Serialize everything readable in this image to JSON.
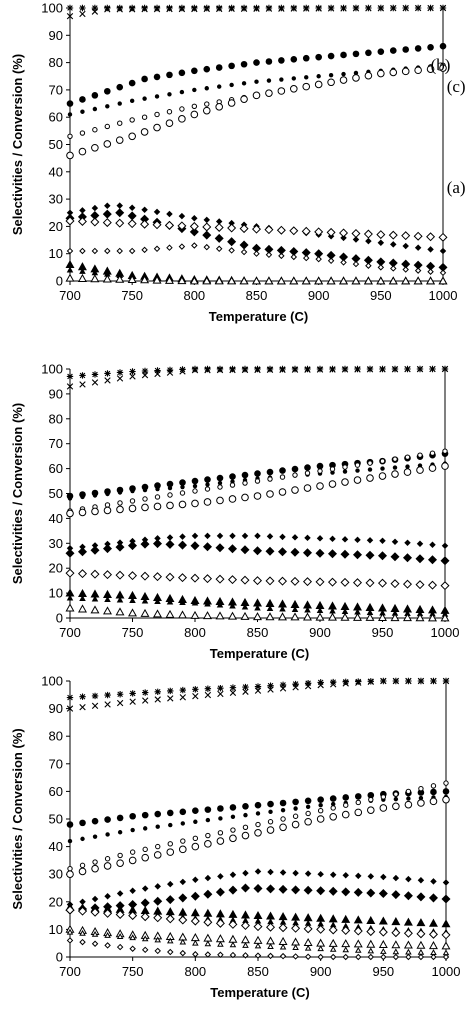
{
  "chart_data": [
    {
      "type": "scatter",
      "xlabel": "Temperature (C)",
      "ylabel": "Selectivities / Conversion (%)",
      "xlim": [
        700,
        1000
      ],
      "ylim": [
        0,
        100
      ],
      "xticks": [
        700,
        750,
        800,
        850,
        900,
        950,
        1000
      ],
      "yticks": [
        0,
        10,
        20,
        30,
        40,
        50,
        60,
        70,
        80,
        90,
        100
      ],
      "grid": false,
      "annotations": [
        {
          "text": "(b)",
          "x": 990,
          "y": 79
        },
        {
          "text": "(c)",
          "x": 1003,
          "y": 71
        },
        {
          "text": "(a)",
          "x": 1003,
          "y": 34
        }
      ],
      "series": [
        {
          "marker": "asterisk",
          "x": [
            700,
            1000
          ],
          "y": [
            100,
            100
          ]
        },
        {
          "marker": "x",
          "x": [
            700,
            730,
            1000
          ],
          "y": [
            97,
            99.5,
            100
          ]
        },
        {
          "marker": "filled-circle",
          "x": [
            700,
            760,
            800,
            850,
            900,
            950,
            1000
          ],
          "y": [
            65,
            74,
            77,
            80,
            82,
            84,
            86
          ]
        },
        {
          "marker": "filled-circle-small",
          "x": [
            700,
            750,
            800,
            850,
            900,
            950,
            1000
          ],
          "y": [
            61,
            66,
            70,
            73,
            75,
            77,
            79
          ]
        },
        {
          "marker": "open-circle-small",
          "x": [
            700,
            750,
            800,
            850,
            900,
            950,
            1000
          ],
          "y": [
            53,
            59,
            64,
            68,
            72,
            76,
            79
          ]
        },
        {
          "marker": "open-circle",
          "x": [
            700,
            750,
            800,
            850,
            900,
            950,
            1000
          ],
          "y": [
            46,
            53,
            61,
            68,
            72,
            76,
            78
          ]
        },
        {
          "marker": "filled-diamond-small",
          "x": [
            700,
            735,
            800,
            850,
            900,
            950,
            1000
          ],
          "y": [
            25,
            28,
            23,
            20,
            17,
            14,
            11
          ]
        },
        {
          "marker": "filled-diamond",
          "x": [
            700,
            740,
            800,
            850,
            900,
            950,
            1000
          ],
          "y": [
            23,
            25,
            18,
            12,
            10,
            7,
            5
          ]
        },
        {
          "marker": "open-diamond",
          "x": [
            700,
            750,
            800,
            850,
            900,
            950,
            1000
          ],
          "y": [
            22,
            21,
            20,
            19,
            18,
            17,
            16
          ]
        },
        {
          "marker": "open-diamond-small",
          "x": [
            700,
            750,
            800,
            850,
            900,
            950,
            1000
          ],
          "y": [
            11,
            11,
            13,
            10,
            8,
            5,
            3
          ]
        },
        {
          "marker": "filled-triangle",
          "x": [
            700,
            750,
            800,
            850,
            1000
          ],
          "y": [
            6,
            2,
            0.5,
            0,
            0
          ]
        },
        {
          "marker": "filled-triangle-small",
          "x": [
            700,
            750,
            800,
            850,
            1000
          ],
          "y": [
            4,
            1.5,
            0,
            0,
            0
          ]
        },
        {
          "marker": "open-triangle",
          "x": [
            700,
            750,
            800,
            1000
          ],
          "y": [
            1,
            0.5,
            0,
            0
          ]
        }
      ]
    },
    {
      "type": "scatter",
      "xlabel": "Temperature (C)",
      "ylabel": "Selectivities / Conversion (%)",
      "xlim": [
        700,
        1000
      ],
      "ylim": [
        0,
        100
      ],
      "xticks": [
        700,
        750,
        800,
        850,
        900,
        950,
        1000
      ],
      "yticks": [
        0,
        10,
        20,
        30,
        40,
        50,
        60,
        70,
        80,
        90,
        100
      ],
      "grid": false,
      "annotations": [],
      "series": [
        {
          "marker": "asterisk",
          "x": [
            700,
            750,
            800,
            850,
            1000
          ],
          "y": [
            97,
            99,
            100,
            100,
            100
          ]
        },
        {
          "marker": "x",
          "x": [
            700,
            750,
            800,
            1000
          ],
          "y": [
            93,
            97,
            99.5,
            100
          ]
        },
        {
          "marker": "filled-circle",
          "x": [
            700,
            750,
            800,
            850,
            900,
            950,
            1000
          ],
          "y": [
            49,
            52,
            55,
            58,
            61,
            63,
            66
          ]
        },
        {
          "marker": "filled-circle-small",
          "x": [
            700,
            750,
            800,
            850,
            900,
            950,
            1000
          ],
          "y": [
            48,
            51,
            53,
            56,
            58,
            60,
            62
          ]
        },
        {
          "marker": "open-circle-small",
          "x": [
            700,
            750,
            800,
            850,
            900,
            950,
            1000
          ],
          "y": [
            43,
            47,
            51,
            55,
            59,
            63,
            67
          ]
        },
        {
          "marker": "open-circle",
          "x": [
            700,
            750,
            800,
            850,
            900,
            950,
            1000
          ],
          "y": [
            42,
            44,
            46,
            49,
            53,
            57,
            61
          ]
        },
        {
          "marker": "filled-diamond-small",
          "x": [
            700,
            770,
            800,
            850,
            900,
            950,
            1000
          ],
          "y": [
            28,
            32,
            33,
            33,
            32,
            31,
            29
          ]
        },
        {
          "marker": "filled-diamond",
          "x": [
            700,
            765,
            800,
            850,
            900,
            950,
            1000
          ],
          "y": [
            26,
            30,
            29,
            27,
            26,
            25,
            23
          ]
        },
        {
          "marker": "open-diamond",
          "x": [
            700,
            750,
            800,
            850,
            900,
            950,
            1000
          ],
          "y": [
            18,
            17,
            16,
            15,
            14.5,
            14,
            13
          ]
        },
        {
          "marker": "filled-triangle",
          "x": [
            700,
            750,
            800,
            850,
            900,
            950,
            1000
          ],
          "y": [
            10,
            9,
            7,
            6,
            5,
            4,
            3
          ]
        },
        {
          "marker": "filled-triangle-small",
          "x": [
            700,
            750,
            800,
            850,
            900,
            950,
            1000
          ],
          "y": [
            8,
            7,
            6,
            4,
            3,
            2,
            1.5
          ]
        },
        {
          "marker": "open-triangle",
          "x": [
            700,
            750,
            800,
            850,
            1000
          ],
          "y": [
            4,
            2,
            1,
            0.5,
            0
          ]
        }
      ]
    },
    {
      "type": "scatter",
      "xlabel": "Temperature (C)",
      "ylabel": "Selectivities / Conversion (%)",
      "xlim": [
        700,
        1000
      ],
      "ylim": [
        0,
        100
      ],
      "xticks": [
        700,
        750,
        800,
        850,
        900,
        950,
        1000
      ],
      "yticks": [
        0,
        10,
        20,
        30,
        40,
        50,
        60,
        70,
        80,
        90,
        100
      ],
      "grid": false,
      "annotations": [],
      "series": [
        {
          "marker": "asterisk",
          "x": [
            700,
            750,
            800,
            850,
            900,
            950,
            1000
          ],
          "y": [
            94,
            95.5,
            97,
            98,
            99.5,
            100,
            100
          ]
        },
        {
          "marker": "x",
          "x": [
            700,
            750,
            800,
            850,
            900,
            950,
            1000
          ],
          "y": [
            90,
            92.5,
            94.5,
            96.5,
            98.5,
            100,
            100
          ]
        },
        {
          "marker": "filled-circle",
          "x": [
            700,
            750,
            800,
            850,
            900,
            950,
            1000
          ],
          "y": [
            48,
            51,
            53,
            55,
            57,
            59,
            60
          ]
        },
        {
          "marker": "filled-circle-small",
          "x": [
            700,
            750,
            800,
            850,
            900,
            950,
            1000
          ],
          "y": [
            42,
            46,
            49,
            52,
            55,
            57,
            58
          ]
        },
        {
          "marker": "open-circle-small",
          "x": [
            700,
            750,
            800,
            850,
            900,
            950,
            1000
          ],
          "y": [
            32,
            38,
            43,
            48,
            53,
            58,
            63
          ]
        },
        {
          "marker": "open-circle",
          "x": [
            700,
            750,
            800,
            850,
            900,
            950,
            1000
          ],
          "y": [
            30,
            35,
            40,
            45,
            50,
            54,
            57
          ]
        },
        {
          "marker": "filled-diamond-small",
          "x": [
            700,
            750,
            800,
            850,
            900,
            950,
            1000
          ],
          "y": [
            19,
            24,
            28,
            31,
            30,
            29,
            27
          ]
        },
        {
          "marker": "filled-diamond",
          "x": [
            700,
            750,
            800,
            840,
            900,
            950,
            1000
          ],
          "y": [
            17,
            19,
            22,
            25,
            24,
            23,
            21
          ]
        },
        {
          "marker": "filled-triangle",
          "x": [
            700,
            750,
            800,
            850,
            900,
            950,
            1000
          ],
          "y": [
            18,
            17,
            16,
            15,
            14,
            13,
            12
          ]
        },
        {
          "marker": "filled-triangle-small",
          "x": [
            700,
            750,
            800,
            850,
            900,
            950,
            1000
          ],
          "y": [
            18,
            16,
            14,
            13,
            12,
            10,
            9
          ]
        },
        {
          "marker": "open-diamond",
          "x": [
            700,
            750,
            800,
            850,
            900,
            950,
            1000
          ],
          "y": [
            17,
            15,
            13,
            11,
            10,
            9,
            8
          ]
        },
        {
          "marker": "open-triangle",
          "x": [
            700,
            750,
            800,
            850,
            900,
            950,
            1000
          ],
          "y": [
            10,
            8,
            7,
            6,
            5,
            4.5,
            4
          ]
        },
        {
          "marker": "open-triangle-small",
          "x": [
            700,
            750,
            800,
            850,
            900,
            950,
            1000
          ],
          "y": [
            9,
            7,
            5,
            4,
            3,
            2,
            1.5
          ]
        },
        {
          "marker": "open-diamond-small",
          "x": [
            700,
            750,
            800,
            850,
            900,
            950,
            1000
          ],
          "y": [
            6,
            3,
            1,
            0.5,
            0,
            0,
            0
          ]
        }
      ]
    }
  ]
}
